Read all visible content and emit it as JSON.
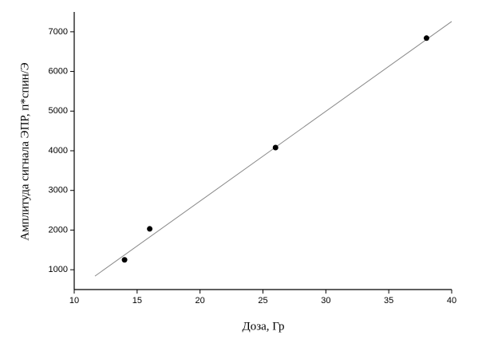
{
  "chart_data": {
    "type": "scatter",
    "xlabel": "Доза, Гр",
    "ylabel": "Амплитуда сигнала ЭПР, п*спин/Э",
    "x": [
      14,
      16,
      26,
      38
    ],
    "values": [
      1250,
      2030,
      4080,
      6840
    ],
    "color": "#000000",
    "fit": {
      "x": [
        11.65,
        40
      ],
      "values": [
        840,
        7260
      ],
      "color": "#888888"
    },
    "xlim": [
      10,
      40
    ],
    "xticks": [
      10,
      15,
      20,
      25,
      30,
      35,
      40
    ],
    "ylim": [
      500,
      7500
    ],
    "yticks": [
      1000,
      2000,
      3000,
      4000,
      5000,
      6000,
      7000
    ]
  }
}
